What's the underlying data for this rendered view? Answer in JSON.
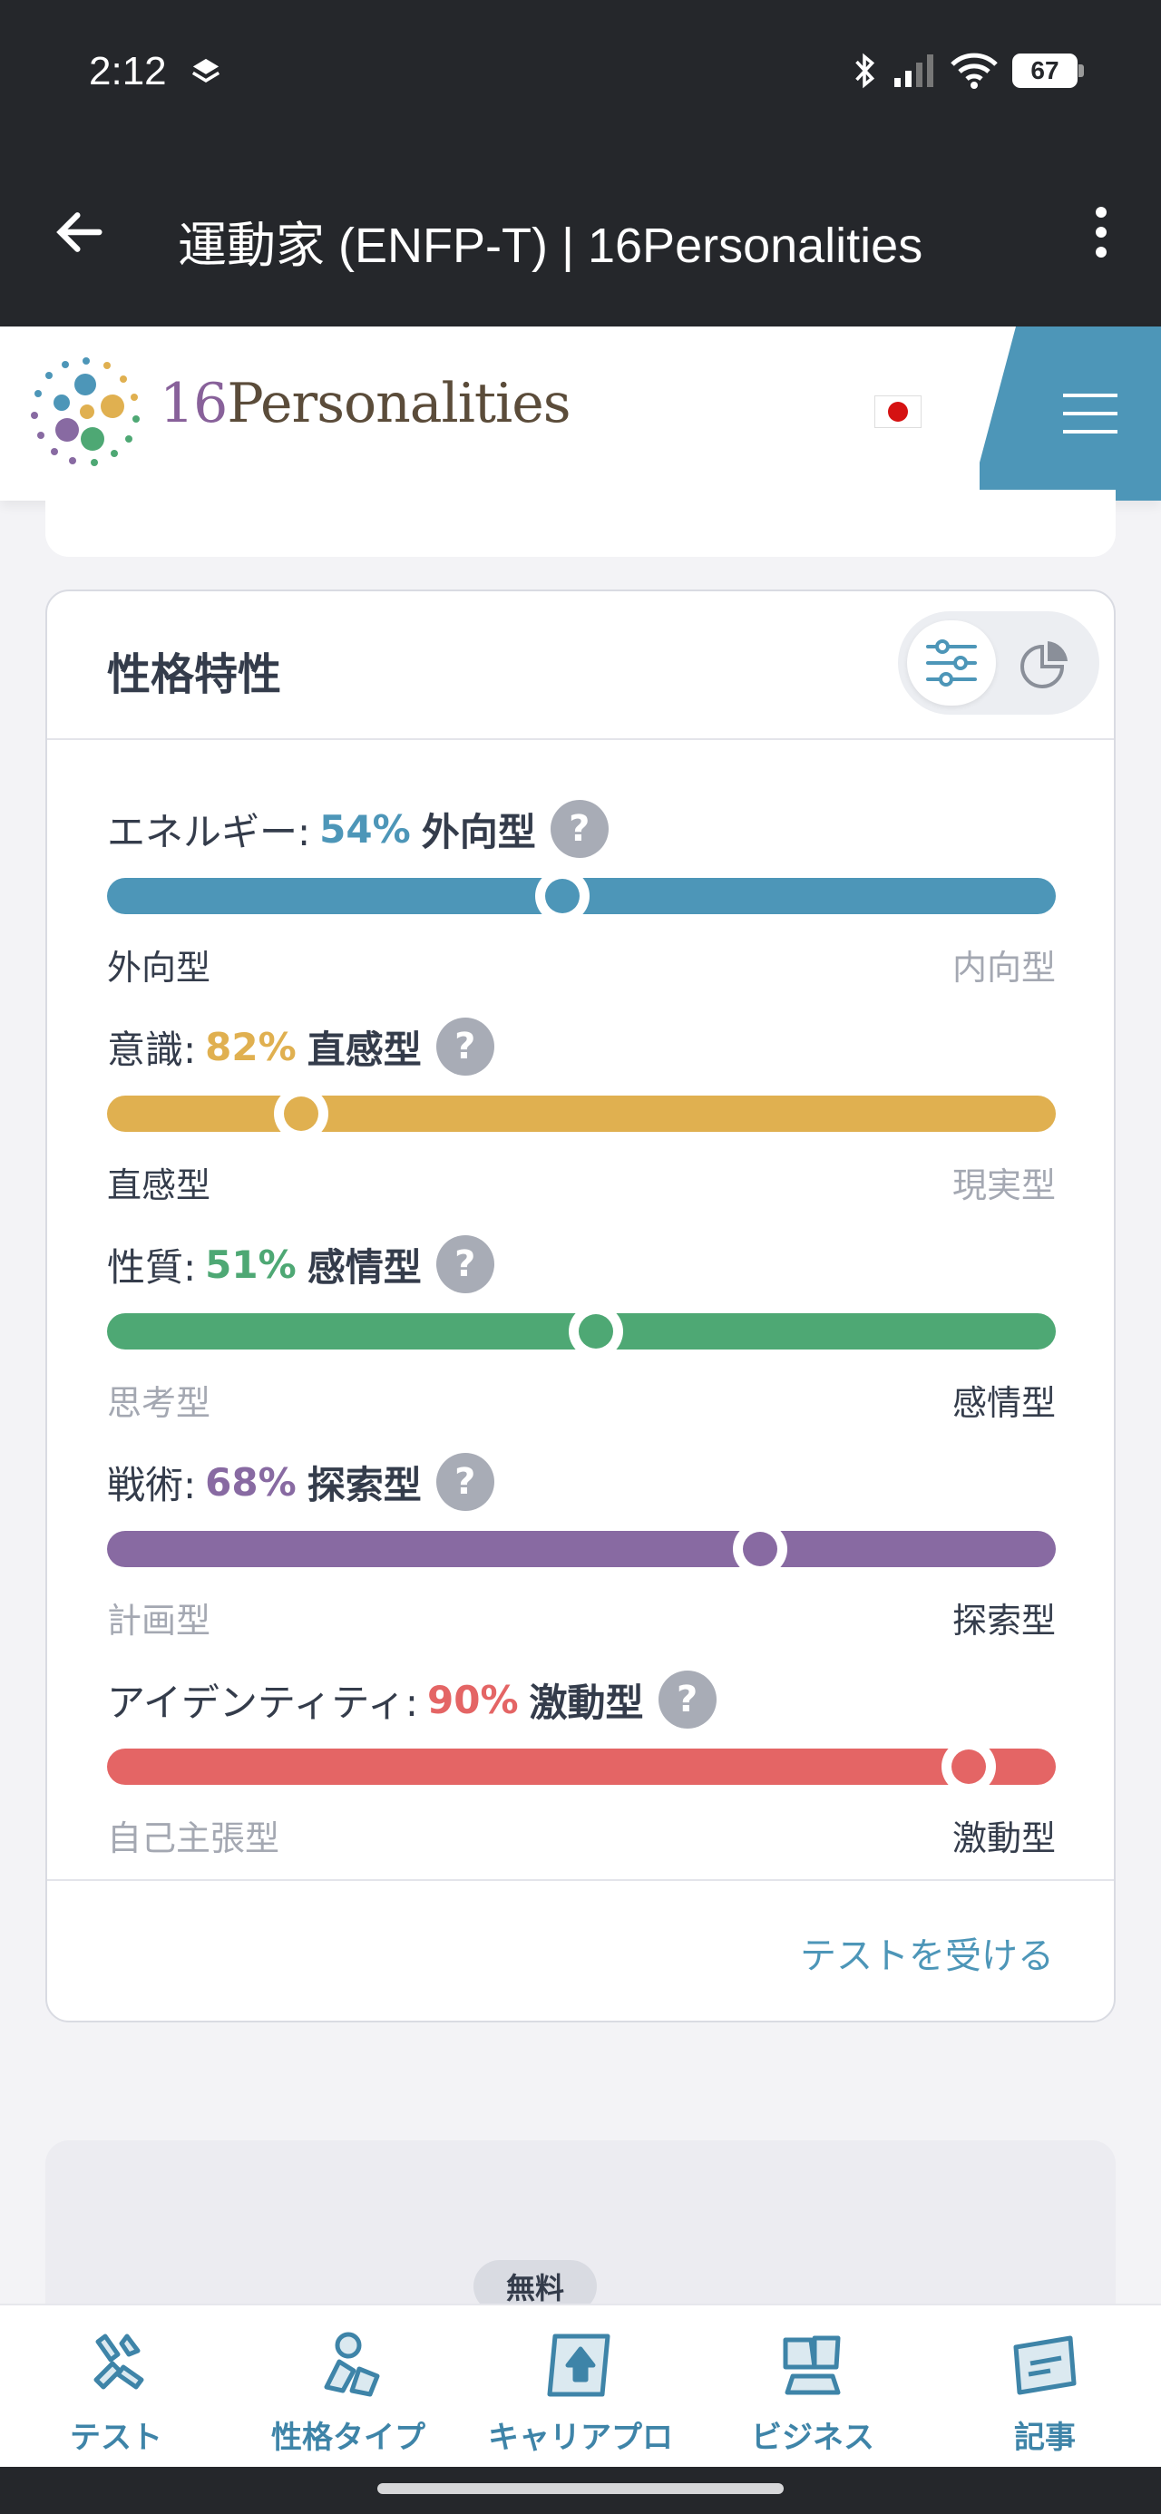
{
  "status_bar": {
    "time": "2:12",
    "battery": "67"
  },
  "app_bar": {
    "title": "運動家 (ENFP-T) | 16Personalities"
  },
  "site_header": {
    "logo_number": "16",
    "logo_word": "Personalities"
  },
  "colors": {
    "energy": "#4d96b8",
    "mind": "#e0b050",
    "nature": "#4ea874",
    "tactics": "#886aa2",
    "identity": "#e46565",
    "link": "#4d96b8"
  },
  "traits_card": {
    "title": "性格特性",
    "traits": [
      {
        "name": "エネルギー:",
        "percent": "54%",
        "type": "外向型",
        "left": "外向型",
        "right": "内向型",
        "position": 0.48,
        "active": "left"
      },
      {
        "name": "意識:",
        "percent": "82%",
        "type": "直感型",
        "left": "直感型",
        "right": "現実型",
        "position": 0.205,
        "active": "left"
      },
      {
        "name": "性質:",
        "percent": "51%",
        "type": "感情型",
        "left": "思考型",
        "right": "感情型",
        "position": 0.515,
        "active": "right"
      },
      {
        "name": "戦術:",
        "percent": "68%",
        "type": "探索型",
        "left": "計画型",
        "right": "探索型",
        "position": 0.688,
        "active": "right"
      },
      {
        "name": "アイデンティティ:",
        "percent": "90%",
        "type": "激動型",
        "left": "自己主張型",
        "right": "激動型",
        "position": 0.908,
        "active": "right"
      }
    ],
    "help_symbol": "?",
    "cta": "テストを受ける"
  },
  "promo": {
    "badge": "無料"
  },
  "bottom_nav": [
    {
      "label": "テスト",
      "icon": "test-icon"
    },
    {
      "label": "性格タイプ",
      "icon": "personality-types-icon"
    },
    {
      "label": "キャリアプロ",
      "icon": "career-pro-icon"
    },
    {
      "label": "ビジネス",
      "icon": "business-icon"
    },
    {
      "label": "記事",
      "icon": "articles-icon"
    }
  ]
}
